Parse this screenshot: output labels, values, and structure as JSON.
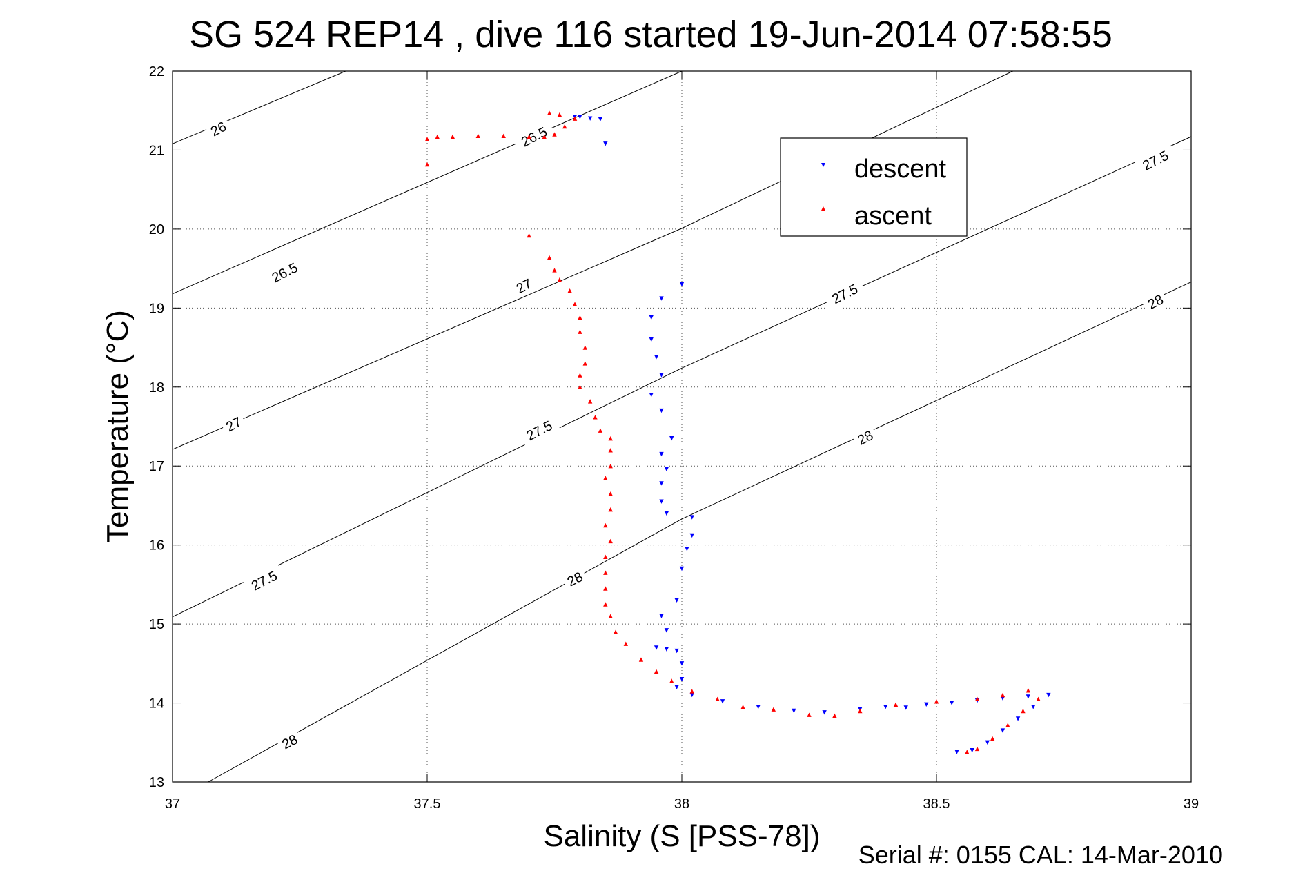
{
  "figure": {
    "title": "SG 524   REP14  , dive 116 started 19-Jun-2014 07:58:55",
    "footer": "Serial #: 0155  CAL: 14-Mar-2010"
  },
  "chart_data": {
    "type": "scatter",
    "title": "SG 524   REP14  , dive 116 started 19-Jun-2014 07:58:55",
    "xlabel": "Salinity (S [PSS-78])",
    "ylabel": "Temperature (°C)",
    "xlim": [
      37,
      39
    ],
    "ylim": [
      13,
      22
    ],
    "xticks": [
      37,
      37.5,
      38,
      38.5,
      39
    ],
    "xtick_labels": [
      "37",
      "37.5",
      "38",
      "38.5",
      "39"
    ],
    "yticks": [
      13,
      14,
      15,
      16,
      17,
      18,
      19,
      20,
      21,
      22
    ],
    "ytick_labels": [
      "13",
      "14",
      "15",
      "16",
      "17",
      "18",
      "19",
      "20",
      "21",
      "22"
    ],
    "grid": true,
    "legend_position": "top-right",
    "density_contours": {
      "line_color": "#000000",
      "lines": [
        {
          "sigma": 26.0,
          "points": [
            [
              37.0,
              21.08
            ],
            [
              37.34,
              22.0
            ]
          ]
        },
        {
          "sigma": 26.5,
          "points": [
            [
              37.0,
              19.18
            ],
            [
              38.0,
              22.0
            ]
          ]
        },
        {
          "sigma": 27.0,
          "points": [
            [
              37.0,
              17.21
            ],
            [
              38.0,
              20.01
            ],
            [
              38.65,
              22.0
            ]
          ]
        },
        {
          "sigma": 27.5,
          "points": [
            [
              37.0,
              15.09
            ],
            [
              38.0,
              18.24
            ],
            [
              39.0,
              21.17
            ]
          ]
        },
        {
          "sigma": 28.0,
          "points": [
            [
              37.07,
              13.0
            ],
            [
              38.0,
              16.33
            ],
            [
              39.0,
              19.33
            ]
          ]
        }
      ],
      "labels": [
        {
          "text": "26",
          "x": 37.09,
          "y": 21.27
        },
        {
          "text": "26.5",
          "x": 37.22,
          "y": 19.45
        },
        {
          "text": "26.5",
          "x": 37.71,
          "y": 21.17
        },
        {
          "text": "27",
          "x": 37.12,
          "y": 17.53
        },
        {
          "text": "27",
          "x": 37.69,
          "y": 19.28
        },
        {
          "text": "27.5",
          "x": 37.18,
          "y": 15.55
        },
        {
          "text": "27.5",
          "x": 37.72,
          "y": 17.45
        },
        {
          "text": "27.5",
          "x": 38.32,
          "y": 19.18
        },
        {
          "text": "27.5",
          "x": 38.93,
          "y": 20.87
        },
        {
          "text": "28",
          "x": 37.23,
          "y": 13.51
        },
        {
          "text": "28",
          "x": 37.79,
          "y": 15.57
        },
        {
          "text": "28",
          "x": 38.36,
          "y": 17.36
        },
        {
          "text": "28",
          "x": 38.93,
          "y": 19.08
        }
      ]
    },
    "series": [
      {
        "name": "descent",
        "color": "#0000ff",
        "marker": "triangle-down",
        "points": [
          [
            37.79,
            21.42
          ],
          [
            37.8,
            21.42
          ],
          [
            37.82,
            21.4
          ],
          [
            37.84,
            21.39
          ],
          [
            37.85,
            21.08
          ],
          [
            38.0,
            19.3
          ],
          [
            37.96,
            19.12
          ],
          [
            37.94,
            18.88
          ],
          [
            37.94,
            18.6
          ],
          [
            37.95,
            18.38
          ],
          [
            37.96,
            18.15
          ],
          [
            37.94,
            17.9
          ],
          [
            37.96,
            17.7
          ],
          [
            37.98,
            17.35
          ],
          [
            37.96,
            17.15
          ],
          [
            37.97,
            16.96
          ],
          [
            37.96,
            16.78
          ],
          [
            37.96,
            16.55
          ],
          [
            37.97,
            16.4
          ],
          [
            38.02,
            16.35
          ],
          [
            38.02,
            16.12
          ],
          [
            38.01,
            15.95
          ],
          [
            38.0,
            15.7
          ],
          [
            37.99,
            15.3
          ],
          [
            37.96,
            15.1
          ],
          [
            37.97,
            14.92
          ],
          [
            37.95,
            14.7
          ],
          [
            37.97,
            14.68
          ],
          [
            37.99,
            14.66
          ],
          [
            38.0,
            14.5
          ],
          [
            38.0,
            14.3
          ],
          [
            37.99,
            14.2
          ],
          [
            38.02,
            14.1
          ],
          [
            38.08,
            14.02
          ],
          [
            38.15,
            13.95
          ],
          [
            38.22,
            13.9
          ],
          [
            38.28,
            13.88
          ],
          [
            38.35,
            13.92
          ],
          [
            38.4,
            13.95
          ],
          [
            38.44,
            13.94
          ],
          [
            38.48,
            13.98
          ],
          [
            38.53,
            14.0
          ],
          [
            38.58,
            14.03
          ],
          [
            38.63,
            14.06
          ],
          [
            38.68,
            14.08
          ],
          [
            38.72,
            14.1
          ],
          [
            38.69,
            13.95
          ],
          [
            38.66,
            13.8
          ],
          [
            38.63,
            13.65
          ],
          [
            38.6,
            13.5
          ],
          [
            38.57,
            13.4
          ],
          [
            38.54,
            13.38
          ]
        ]
      },
      {
        "name": "ascent",
        "color": "#ff0000",
        "marker": "triangle-up",
        "points": [
          [
            37.5,
            20.82
          ],
          [
            37.5,
            21.14
          ],
          [
            37.52,
            21.17
          ],
          [
            37.55,
            21.17
          ],
          [
            37.6,
            21.18
          ],
          [
            37.65,
            21.18
          ],
          [
            37.7,
            21.17
          ],
          [
            37.73,
            21.17
          ],
          [
            37.75,
            21.2
          ],
          [
            37.77,
            21.3
          ],
          [
            37.79,
            21.4
          ],
          [
            37.76,
            21.45
          ],
          [
            37.74,
            21.47
          ],
          [
            37.7,
            19.92
          ],
          [
            37.74,
            19.64
          ],
          [
            37.75,
            19.48
          ],
          [
            37.76,
            19.36
          ],
          [
            37.78,
            19.22
          ],
          [
            37.79,
            19.05
          ],
          [
            37.8,
            18.88
          ],
          [
            37.8,
            18.7
          ],
          [
            37.81,
            18.5
          ],
          [
            37.81,
            18.3
          ],
          [
            37.8,
            18.15
          ],
          [
            37.8,
            18.0
          ],
          [
            37.82,
            17.82
          ],
          [
            37.83,
            17.62
          ],
          [
            37.84,
            17.45
          ],
          [
            37.86,
            17.35
          ],
          [
            37.86,
            17.2
          ],
          [
            37.86,
            17.0
          ],
          [
            37.85,
            16.85
          ],
          [
            37.86,
            16.65
          ],
          [
            37.86,
            16.45
          ],
          [
            37.85,
            16.25
          ],
          [
            37.86,
            16.05
          ],
          [
            37.85,
            15.85
          ],
          [
            37.85,
            15.65
          ],
          [
            37.85,
            15.45
          ],
          [
            37.85,
            15.25
          ],
          [
            37.86,
            15.1
          ],
          [
            37.87,
            14.9
          ],
          [
            37.89,
            14.75
          ],
          [
            37.92,
            14.55
          ],
          [
            37.95,
            14.4
          ],
          [
            37.98,
            14.28
          ],
          [
            38.02,
            14.15
          ],
          [
            38.07,
            14.05
          ],
          [
            38.12,
            13.95
          ],
          [
            38.18,
            13.92
          ],
          [
            38.25,
            13.85
          ],
          [
            38.3,
            13.84
          ],
          [
            38.35,
            13.9
          ],
          [
            38.42,
            13.98
          ],
          [
            38.5,
            14.02
          ],
          [
            38.58,
            14.05
          ],
          [
            38.63,
            14.1
          ],
          [
            38.68,
            14.16
          ],
          [
            38.7,
            14.05
          ],
          [
            38.67,
            13.9
          ],
          [
            38.64,
            13.72
          ],
          [
            38.61,
            13.55
          ],
          [
            38.58,
            13.42
          ],
          [
            38.56,
            13.38
          ]
        ]
      }
    ]
  }
}
